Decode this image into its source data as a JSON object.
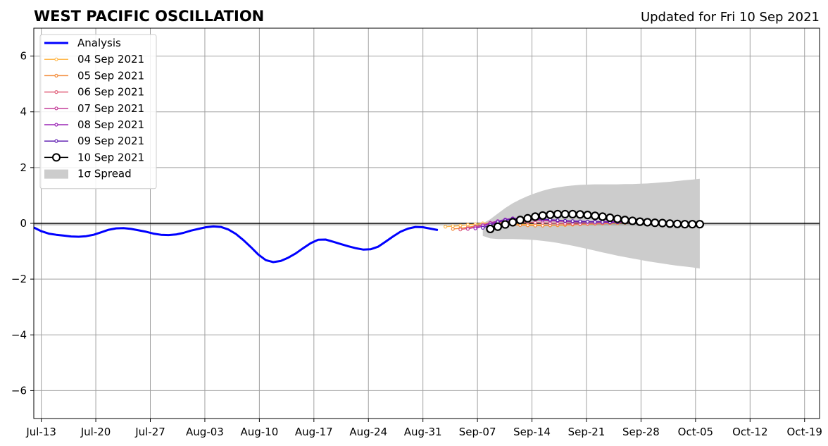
{
  "chart_data": {
    "type": "line",
    "title": "WEST PACIFIC OSCILLATION",
    "subtitle": "Updated for Fri 10 Sep 2021",
    "xlabel": "",
    "ylabel": "",
    "x_start": "2021-07-13",
    "x_end": "2021-10-23",
    "xlim": [
      "2021-07-12",
      "2021-10-25"
    ],
    "ylim": [
      -7,
      7
    ],
    "x_tick_labels": [
      "Jul-13",
      "Jul-20",
      "Jul-27",
      "Aug-03",
      "Aug-10",
      "Aug-17",
      "Aug-24",
      "Aug-31",
      "Sep-07",
      "Sep-14",
      "Sep-21",
      "Sep-28",
      "Oct-05",
      "Oct-12",
      "Oct-19"
    ],
    "y_ticks": [
      -6,
      -4,
      -2,
      0,
      2,
      4,
      6
    ],
    "y_tick_labels": [
      "−6",
      "−4",
      "−2",
      "0",
      "2",
      "4",
      "6"
    ],
    "grid": true,
    "legend_position": "top-left",
    "series": [
      {
        "name": "Analysis",
        "color": "#0000ff",
        "start": "2021-07-12",
        "values": [
          -0.15,
          -0.28,
          -0.37,
          -0.41,
          -0.44,
          -0.47,
          -0.48,
          -0.46,
          -0.41,
          -0.32,
          -0.23,
          -0.18,
          -0.17,
          -0.2,
          -0.25,
          -0.3,
          -0.37,
          -0.41,
          -0.42,
          -0.4,
          -0.34,
          -0.26,
          -0.2,
          -0.14,
          -0.11,
          -0.13,
          -0.22,
          -0.38,
          -0.6,
          -0.85,
          -1.12,
          -1.32,
          -1.39,
          -1.35,
          -1.23,
          -1.08,
          -0.89,
          -0.71,
          -0.59,
          -0.58,
          -0.66,
          -0.74,
          -0.82,
          -0.89,
          -0.94,
          -0.93,
          -0.84,
          -0.66,
          -0.47,
          -0.3,
          -0.19,
          -0.13,
          -0.14,
          -0.19,
          -0.24
        ]
      },
      {
        "name": "04 Sep 2021",
        "color": "#ffb84d",
        "start": "2021-09-05",
        "values": [
          -0.12,
          -0.1,
          -0.08,
          -0.05,
          -0.03,
          0.0,
          0.02,
          0.01,
          0.0,
          -0.02,
          -0.03,
          -0.04,
          -0.05,
          -0.06,
          -0.07,
          -0.07,
          -0.06,
          -0.05,
          -0.04,
          -0.03,
          -0.02,
          -0.01,
          0.0,
          0.01,
          0.02
        ]
      },
      {
        "name": "05 Sep 2021",
        "color": "#f28b3a",
        "start": "2021-09-06",
        "values": [
          -0.2,
          -0.18,
          -0.14,
          -0.1,
          -0.06,
          -0.03,
          -0.02,
          -0.03,
          -0.05,
          -0.06,
          -0.07,
          -0.08,
          -0.08,
          -0.07,
          -0.06,
          -0.05,
          -0.04,
          -0.03,
          -0.02,
          -0.01,
          0.0,
          0.01,
          0.02,
          0.02,
          0.02
        ]
      },
      {
        "name": "06 Sep 2021",
        "color": "#e0607a",
        "start": "2021-09-07",
        "values": [
          -0.22,
          -0.18,
          -0.12,
          -0.06,
          0.0,
          0.04,
          0.06,
          0.06,
          0.05,
          0.04,
          0.03,
          0.02,
          0.01,
          0.0,
          -0.01,
          -0.02,
          -0.02,
          -0.01,
          0.0,
          0.01,
          0.02,
          0.03,
          0.03,
          0.03,
          0.03
        ]
      },
      {
        "name": "07 Sep 2021",
        "color": "#c43f9a",
        "start": "2021-09-08",
        "values": [
          -0.2,
          -0.14,
          -0.06,
          0.02,
          0.08,
          0.12,
          0.14,
          0.14,
          0.13,
          0.12,
          0.1,
          0.09,
          0.08,
          0.07,
          0.06,
          0.05,
          0.05,
          0.05,
          0.05,
          0.05,
          0.06,
          0.06,
          0.06,
          0.06,
          0.06
        ]
      },
      {
        "name": "08 Sep 2021",
        "color": "#9b26b6",
        "start": "2021-09-09",
        "values": [
          -0.18,
          -0.1,
          0.0,
          0.08,
          0.14,
          0.18,
          0.19,
          0.18,
          0.16,
          0.14,
          0.12,
          0.1,
          0.09,
          0.08,
          0.07,
          0.06,
          0.06,
          0.06,
          0.06,
          0.06,
          0.07,
          0.07,
          0.07,
          0.07,
          0.07
        ]
      },
      {
        "name": "09 Sep 2021",
        "color": "#5e1cb0",
        "start": "2021-09-10",
        "values": [
          -0.16,
          -0.06,
          0.04,
          0.11,
          0.16,
          0.18,
          0.18,
          0.17,
          0.15,
          0.13,
          0.11,
          0.09,
          0.08,
          0.07,
          0.06,
          0.05,
          0.05,
          0.04,
          0.04,
          0.04,
          0.03,
          0.03,
          0.03,
          0.03,
          0.03
        ]
      },
      {
        "name": "10 Sep 2021",
        "color": "#000000",
        "start": "2021-09-11",
        "values": [
          -0.2,
          -0.12,
          -0.04,
          0.04,
          0.12,
          0.18,
          0.24,
          0.28,
          0.31,
          0.33,
          0.33,
          0.33,
          0.32,
          0.3,
          0.27,
          0.24,
          0.2,
          0.16,
          0.12,
          0.09,
          0.06,
          0.04,
          0.02,
          0.01,
          -0.01,
          -0.02,
          -0.03,
          -0.03,
          -0.03
        ]
      }
    ],
    "spread": {
      "name": "1σ Spread",
      "color": "#cccccc",
      "start": "2021-09-10",
      "upper": [
        0.0,
        0.15,
        0.35,
        0.55,
        0.72,
        0.86,
        0.98,
        1.08,
        1.17,
        1.24,
        1.29,
        1.33,
        1.36,
        1.38,
        1.39,
        1.4,
        1.4,
        1.4,
        1.4,
        1.41,
        1.41,
        1.42,
        1.43,
        1.45,
        1.47,
        1.49,
        1.52,
        1.55,
        1.57,
        1.6
      ],
      "lower": [
        -0.45,
        -0.54,
        -0.56,
        -0.56,
        -0.56,
        -0.57,
        -0.58,
        -0.6,
        -0.63,
        -0.66,
        -0.7,
        -0.75,
        -0.8,
        -0.86,
        -0.92,
        -0.98,
        -1.04,
        -1.1,
        -1.16,
        -1.21,
        -1.26,
        -1.31,
        -1.36,
        -1.4,
        -1.44,
        -1.48,
        -1.52,
        -1.55,
        -1.58,
        -1.62
      ]
    }
  }
}
